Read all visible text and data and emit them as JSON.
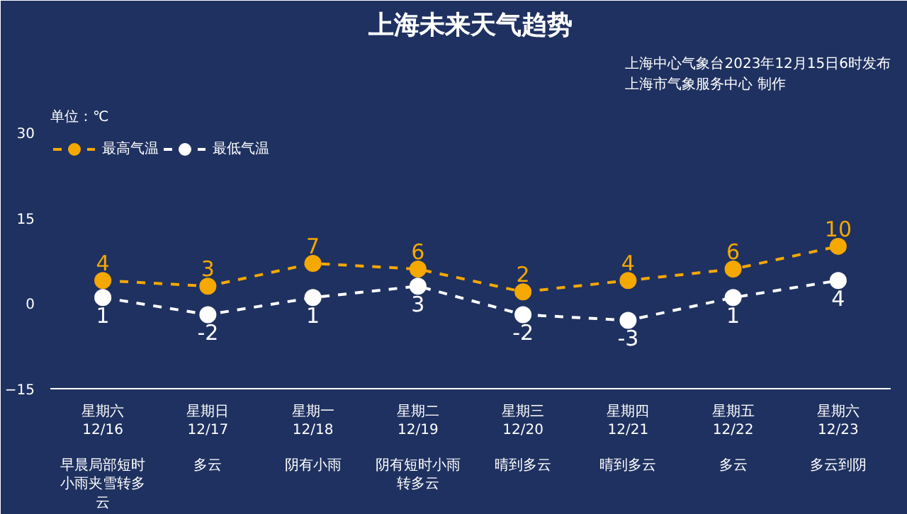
{
  "chart_data": {
    "type": "line",
    "title": "上海未来天气趋势",
    "subtitle": "上海中心气象台2023年12月15日6时发布上海市气象服务中心 制作",
    "ylabel": "单位：℃",
    "categories": [
      "星期六\n12/16",
      "星期日\n12/17",
      "星期一\n12/18",
      "星期二\n12/19",
      "星期三\n12/20",
      "星期四\n12/21",
      "星期五\n12/22",
      "星期六\n12/23"
    ],
    "series": [
      {
        "name": "最高气温",
        "color": "#f5a800",
        "values": [
          4,
          3,
          7,
          6,
          2,
          4,
          6,
          10
        ]
      },
      {
        "name": "最低气温",
        "color": "#ffffff",
        "values": [
          1,
          -2,
          1,
          3,
          -2,
          -3,
          1,
          4
        ]
      }
    ],
    "annotations": [
      "早晨局部短时小雨夹雪转多云",
      "多云",
      "阴有小雨",
      "阴有短时小雨转多云",
      "晴到多云",
      "晴到多云",
      "多云",
      "多云到阴"
    ],
    "ylim": [
      -15,
      30
    ],
    "yticks": [
      -15,
      0,
      15,
      30
    ],
    "grid": false,
    "legend": "top left",
    "marker": "circle",
    "line_style": "dashed",
    "data_labels": true
  }
}
